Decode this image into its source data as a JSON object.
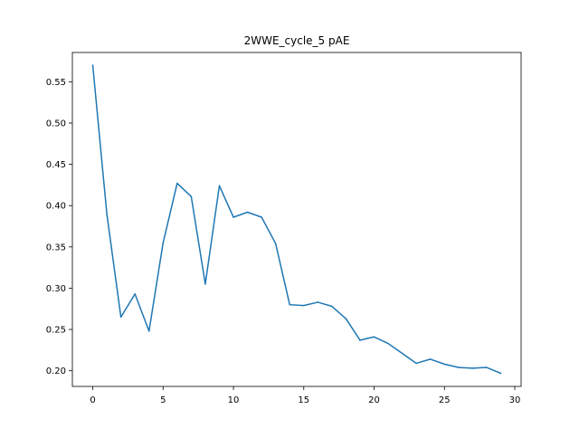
{
  "chart_data": {
    "type": "line",
    "title": "2WWE_cycle_5 pAE",
    "xlabel": "",
    "ylabel": "",
    "xlim": [
      -1.45,
      30.45
    ],
    "ylim": [
      0.181,
      0.5855
    ],
    "xticks": [
      0,
      5,
      10,
      15,
      20,
      25,
      30
    ],
    "yticks": [
      0.2,
      0.25,
      0.3,
      0.35,
      0.4,
      0.45,
      0.5,
      0.55
    ],
    "xtick_labels": [
      "0",
      "5",
      "10",
      "15",
      "20",
      "25",
      "30"
    ],
    "ytick_labels": [
      "0.20",
      "0.25",
      "0.30",
      "0.35",
      "0.40",
      "0.45",
      "0.50",
      "0.55"
    ],
    "grid": false,
    "legend": "none",
    "series": [
      {
        "name": "",
        "color": "#1f77b4",
        "x": [
          0,
          1,
          2,
          3,
          4,
          5,
          6,
          7,
          8,
          9,
          10,
          11,
          12,
          13,
          14,
          15,
          16,
          17,
          18,
          19,
          20,
          21,
          22,
          23,
          24,
          25,
          26,
          27,
          28,
          29
        ],
        "y": [
          0.57,
          0.39,
          0.265,
          0.293,
          0.248,
          0.355,
          0.427,
          0.411,
          0.305,
          0.424,
          0.386,
          0.392,
          0.386,
          0.354,
          0.28,
          0.279,
          0.283,
          0.278,
          0.263,
          0.237,
          0.241,
          0.233,
          0.221,
          0.209,
          0.214,
          0.208,
          0.204,
          0.203,
          0.204,
          0.197
        ]
      }
    ]
  }
}
